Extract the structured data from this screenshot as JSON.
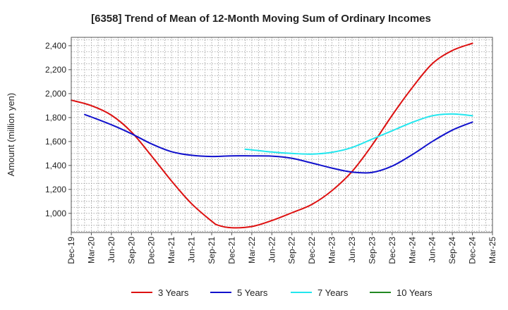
{
  "chart_data": {
    "type": "line",
    "title": "[6358]  Trend of Mean of 12-Month Moving Sum of Ordinary Incomes",
    "xlabel": "",
    "ylabel": "Amount (million yen)",
    "ylim": [
      840,
      2470
    ],
    "yticks": [
      1000,
      1200,
      1400,
      1600,
      1800,
      2000,
      2200,
      2400
    ],
    "ytick_labels": [
      "1,000",
      "1,200",
      "1,400",
      "1,600",
      "1,800",
      "2,000",
      "2,200",
      "2,400"
    ],
    "xlim": [
      0,
      63
    ],
    "xticks": [
      0,
      3,
      6,
      9,
      12,
      15,
      18,
      21,
      24,
      27,
      30,
      33,
      36,
      39,
      42,
      45,
      48,
      51,
      54,
      57,
      60,
      63
    ],
    "xtick_labels": [
      "Dec-19",
      "Mar-20",
      "Jun-20",
      "Sep-20",
      "Dec-20",
      "Mar-21",
      "Jun-21",
      "Sep-21",
      "Dec-21",
      "Mar-22",
      "Jun-22",
      "Sep-22",
      "Dec-22",
      "Mar-23",
      "Jun-23",
      "Sep-23",
      "Dec-23",
      "Mar-24",
      "Jun-24",
      "Sep-24",
      "Dec-24",
      "Mar-25"
    ],
    "grid": true,
    "legend_position": "bottom",
    "series": [
      {
        "name": "3 Years",
        "color": "#dd1111",
        "x": [
          0,
          3,
          6,
          9,
          12,
          15,
          18,
          21,
          22,
          24,
          27,
          30,
          33,
          36,
          39,
          42,
          45,
          48,
          51,
          54,
          57,
          60
        ],
        "y": [
          1945,
          1900,
          1820,
          1680,
          1480,
          1270,
          1080,
          935,
          900,
          880,
          890,
          940,
          1005,
          1075,
          1190,
          1350,
          1570,
          1820,
          2050,
          2250,
          2360,
          2420
        ]
      },
      {
        "name": "5 Years",
        "color": "#1111cc",
        "x": [
          2,
          3,
          6,
          9,
          12,
          15,
          18,
          21,
          24,
          27,
          30,
          33,
          36,
          39,
          42,
          45,
          48,
          51,
          54,
          57,
          60
        ],
        "y": [
          1825,
          1805,
          1740,
          1665,
          1580,
          1515,
          1485,
          1475,
          1480,
          1480,
          1478,
          1460,
          1420,
          1378,
          1345,
          1342,
          1395,
          1490,
          1600,
          1695,
          1762
        ]
      },
      {
        "name": "7 Years",
        "color": "#22e6ee",
        "x": [
          26,
          27,
          30,
          33,
          36,
          39,
          42,
          45,
          48,
          51,
          54,
          57,
          60
        ],
        "y": [
          1535,
          1530,
          1512,
          1500,
          1495,
          1510,
          1550,
          1620,
          1690,
          1760,
          1815,
          1830,
          1815
        ]
      },
      {
        "name": "10 Years",
        "color": "#228822",
        "x": [],
        "y": []
      }
    ]
  }
}
